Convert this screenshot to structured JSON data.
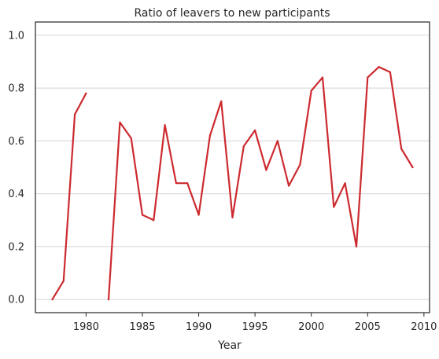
{
  "chart_data": {
    "type": "line",
    "title": "Ratio of leavers to new participants",
    "xlabel": "Year",
    "ylabel": "",
    "xlim": [
      1975.5,
      2010.5
    ],
    "ylim": [
      -0.05,
      1.05
    ],
    "xticks": [
      1980,
      1985,
      1990,
      1995,
      2000,
      2005,
      2010
    ],
    "yticks": [
      0.0,
      0.2,
      0.4,
      0.6,
      0.8,
      1.0
    ],
    "ytick_labels": [
      "0.0",
      "0.2",
      "0.4",
      "0.6",
      "0.8",
      "1.0"
    ],
    "grid": "horizontal",
    "color": "#cc2a2f",
    "segments": [
      {
        "x": [
          1977,
          1978,
          1979,
          1980
        ],
        "y": [
          0.0,
          0.07,
          0.7,
          0.78
        ]
      },
      {
        "x": [
          1982,
          1983,
          1984,
          1985,
          1986,
          1987,
          1988,
          1989,
          1990,
          1991,
          1992,
          1993,
          1994,
          1995,
          1996,
          1997,
          1998,
          1999,
          2000,
          2001,
          2002,
          2003,
          2004,
          2005,
          2006,
          2007,
          2008,
          2009
        ],
        "y": [
          0.0,
          0.67,
          0.61,
          0.32,
          0.3,
          0.66,
          0.44,
          0.44,
          0.32,
          0.62,
          0.75,
          0.31,
          0.58,
          0.64,
          0.49,
          0.6,
          0.43,
          0.51,
          0.79,
          0.84,
          0.35,
          0.44,
          0.2,
          0.84,
          0.88,
          0.86,
          0.57,
          0.5
        ]
      }
    ]
  }
}
